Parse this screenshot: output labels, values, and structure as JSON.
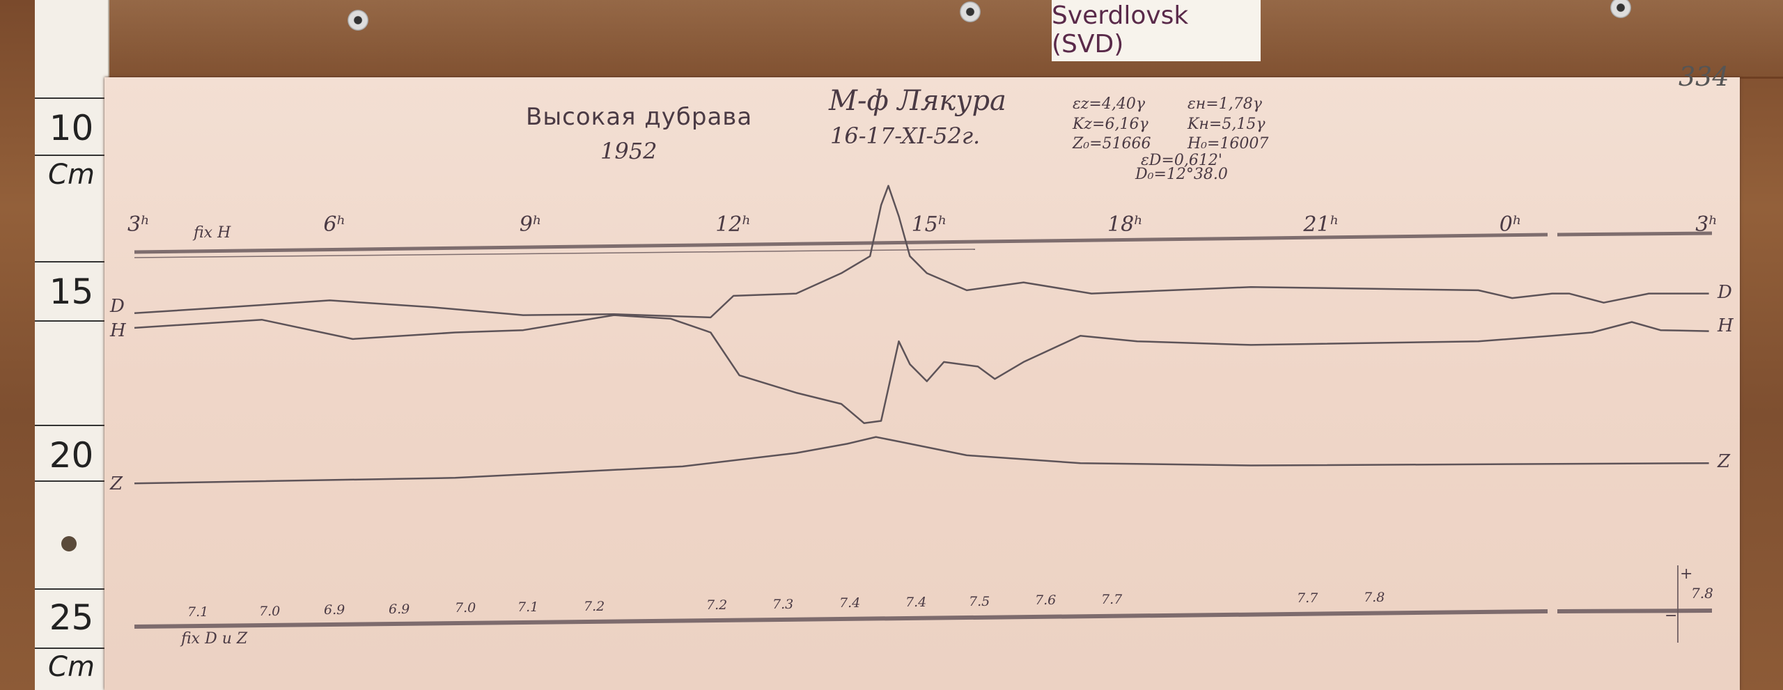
{
  "station_label": "Sverdlovsk (SVD)",
  "sheet_number": "334",
  "ruler": {
    "marks": [
      "10",
      "15",
      "20",
      "25"
    ],
    "unit_top": "Cm",
    "unit_bottom": "Cm"
  },
  "header": {
    "observatory": "Высокая дубрава",
    "year": "1952",
    "observer": "М-ф Лякура",
    "date": "16-17-XI-52г.",
    "params": {
      "eps_z": "εz=4,40γ",
      "eps_h": "εн=1,78γ",
      "k_z": "Kz=6,16γ",
      "k_h": "Kн=5,15γ",
      "z0": "Z₀=51666",
      "h0": "H₀=16007",
      "eps_d": "εD=0,612'",
      "d0": "D₀=12°38.0"
    }
  },
  "colors": {
    "trace": "#5d5358",
    "baseline": "#6a5a5e",
    "paper": "#efd6c8",
    "wood": "#8a5735"
  },
  "chart_data": {
    "type": "line",
    "title": "",
    "x_unit": "hours",
    "y_unit": "cm (ruler)",
    "hour_ticks": [
      "3ʰ",
      "6ʰ",
      "9ʰ",
      "12ʰ",
      "15ʰ",
      "18ʰ",
      "21ʰ",
      "0ʰ",
      "3ʰ"
    ],
    "hour_tick_values": [
      3,
      6,
      9,
      12,
      15,
      18,
      21,
      24,
      27
    ],
    "baseline_top_label": "fix H",
    "baseline_bottom_label": "fix D u Z",
    "bottom_values": [
      "7.1",
      "7.0",
      "6.9",
      "6.9",
      "7.0",
      "7.1",
      "7.2",
      "7.2",
      "7.3",
      "7.4",
      "7.4",
      "7.5",
      "7.6",
      "7.7",
      "7.7",
      "7.8"
    ],
    "scale_marker": {
      "plus": "+",
      "minus": "−",
      "value": "7.8"
    },
    "series": [
      {
        "name": "D",
        "x": [
          3.0,
          4.43,
          5.99,
          7.56,
          8.95,
          10.34,
          11.82,
          12.17,
          13.13,
          13.82,
          14.26,
          14.43,
          14.54,
          14.7,
          14.87,
          15.13,
          15.74,
          16.61,
          17.65,
          20.09,
          23.57,
          24.09,
          24.7,
          24.96,
          25.49,
          26.18,
          27.1
        ],
        "y": [
          15.63,
          15.45,
          15.24,
          15.45,
          15.69,
          15.66,
          15.76,
          15.1,
          15.03,
          14.41,
          13.89,
          12.33,
          11.74,
          12.67,
          13.89,
          14.41,
          14.93,
          14.69,
          15.03,
          14.83,
          14.93,
          15.17,
          15.03,
          15.03,
          15.31,
          15.03,
          15.03
        ]
      },
      {
        "name": "H",
        "x": [
          3.0,
          4.95,
          6.34,
          7.91,
          8.95,
          10.34,
          11.21,
          11.82,
          12.26,
          13.13,
          13.82,
          14.17,
          14.43,
          14.7,
          14.87,
          15.13,
          15.39,
          15.91,
          16.17,
          16.61,
          17.48,
          18.35,
          20.09,
          23.57,
          24.7,
          25.31,
          25.92,
          26.36,
          27.1
        ],
        "y": [
          16.08,
          15.83,
          16.42,
          16.22,
          16.15,
          15.69,
          15.8,
          16.22,
          17.53,
          18.06,
          18.4,
          18.99,
          18.92,
          16.49,
          17.19,
          17.71,
          17.12,
          17.26,
          17.64,
          17.12,
          16.32,
          16.49,
          16.6,
          16.49,
          16.32,
          16.22,
          15.9,
          16.15,
          16.18
        ]
      },
      {
        "name": "Z",
        "x": [
          3.0,
          7.91,
          11.39,
          13.13,
          13.91,
          14.35,
          14.7,
          15.74,
          17.48,
          20.09,
          27.1
        ],
        "y": [
          20.83,
          20.66,
          20.31,
          19.9,
          19.62,
          19.41,
          19.55,
          19.97,
          20.21,
          20.28,
          20.21
        ]
      }
    ]
  }
}
